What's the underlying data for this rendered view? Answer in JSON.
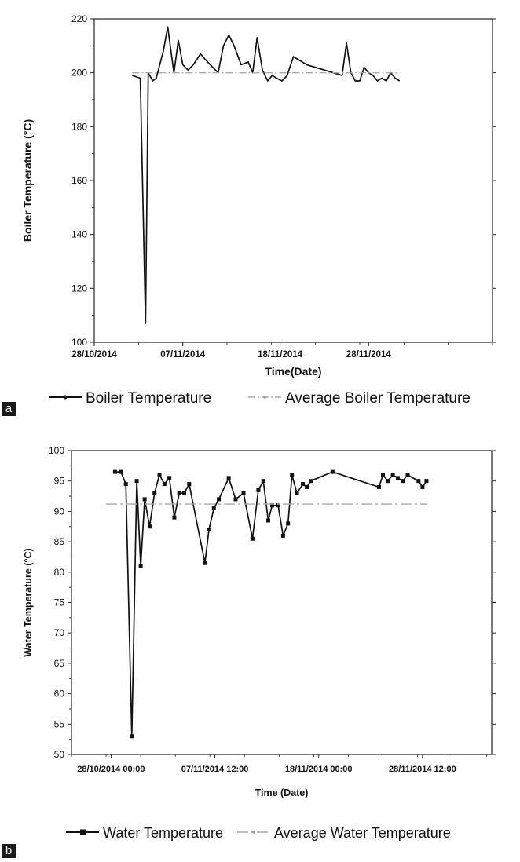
{
  "panels": [
    {
      "label": "a"
    },
    {
      "label": "b"
    }
  ],
  "chart_data": [
    {
      "type": "line",
      "title": "",
      "xlabel": "Time(Date)",
      "ylabel": "Boiler Temperature (°C)",
      "x_tick_labels": [
        "28/10/2014",
        "07/11/2014",
        "18/11/2014",
        "28/11/2014"
      ],
      "x_tick_values": [
        0,
        10,
        21,
        31
      ],
      "xlim": [
        0,
        45
      ],
      "y_ticks": [
        100,
        120,
        140,
        160,
        180,
        200,
        220
      ],
      "ylim": [
        100,
        220
      ],
      "grid": false,
      "legend_position": "bottom",
      "series": [
        {
          "name": "Boiler Temperature",
          "style": "solid",
          "color": "#111111",
          "x": [
            4.3,
            5.2,
            5.8,
            6.1,
            6.6,
            7.0,
            7.8,
            8.3,
            9.0,
            9.5,
            10.0,
            10.6,
            11.2,
            12.0,
            12.8,
            14.0,
            14.6,
            15.2,
            15.8,
            16.6,
            17.4,
            17.9,
            18.4,
            19.0,
            19.6,
            20.1,
            20.6,
            21.2,
            21.8,
            22.5,
            24.0,
            26.0,
            28.0,
            28.5,
            29.0,
            29.5,
            30.0,
            30.5,
            31.0,
            31.5,
            32.0,
            32.5,
            33.0,
            33.5,
            34.0,
            34.5
          ],
          "y": [
            199,
            198,
            107,
            200,
            197,
            198,
            208,
            217,
            200,
            212,
            203,
            201,
            203,
            207,
            204,
            200,
            210,
            214,
            210,
            203,
            204,
            200,
            213,
            201,
            197,
            199,
            198,
            197,
            199,
            206,
            203,
            201,
            199,
            211,
            200,
            197,
            197,
            202,
            200,
            199,
            197,
            198,
            197,
            200,
            198,
            197
          ]
        },
        {
          "name": "Average Boiler Temperature",
          "style": "dash-dot",
          "color": "#aaaaaa",
          "x": [
            4.3,
            34.5
          ],
          "y": [
            200,
            200
          ]
        }
      ]
    },
    {
      "type": "line",
      "title": "",
      "xlabel": "Time (Date)",
      "ylabel": "Water Temperature (°C)",
      "x_tick_labels": [
        "28/10/2014 00:00",
        "07/11/2014 12:00",
        "18/11/2014 00:00",
        "28/11/2014 12:00"
      ],
      "x_tick_values": [
        0,
        10.5,
        21,
        31.5
      ],
      "xlim": [
        -4.0,
        38.5
      ],
      "y_ticks": [
        50,
        55,
        60,
        65,
        70,
        75,
        80,
        85,
        90,
        95,
        100
      ],
      "ylim": [
        50,
        100
      ],
      "grid": false,
      "legend_position": "bottom",
      "series": [
        {
          "name": "Water Temperature",
          "style": "solid-square-markers",
          "color": "#111111",
          "x": [
            0.4,
            1.0,
            1.5,
            2.1,
            2.6,
            3.0,
            3.4,
            3.9,
            4.4,
            4.9,
            5.4,
            5.9,
            6.4,
            6.9,
            7.4,
            7.9,
            9.5,
            9.9,
            10.4,
            10.9,
            11.9,
            12.6,
            13.4,
            14.3,
            14.9,
            15.4,
            15.9,
            16.3,
            16.9,
            17.4,
            17.9,
            18.3,
            18.8,
            19.4,
            19.8,
            20.2,
            22.4,
            27.1,
            27.5,
            28.0,
            28.5,
            29.0,
            29.5,
            30.0,
            31.1,
            31.5,
            31.9
          ],
          "y": [
            96.5,
            96.5,
            94.5,
            53,
            95,
            81,
            92,
            87.5,
            93,
            96,
            94.5,
            95.5,
            89,
            93,
            93,
            94.5,
            81.5,
            87,
            90.5,
            92,
            95.5,
            92,
            93,
            85.5,
            93.5,
            95,
            88.5,
            91,
            91,
            86,
            88,
            96,
            93,
            94.5,
            94,
            95,
            96.5,
            94,
            96,
            95,
            96,
            95.5,
            95,
            96,
            95,
            94,
            95
          ]
        },
        {
          "name": "Average Water Temperature",
          "style": "long-dash-dot",
          "color": "#aaaaaa",
          "x": [
            -0.5,
            32.0
          ],
          "y": [
            91.2,
            91.2
          ]
        }
      ]
    }
  ]
}
